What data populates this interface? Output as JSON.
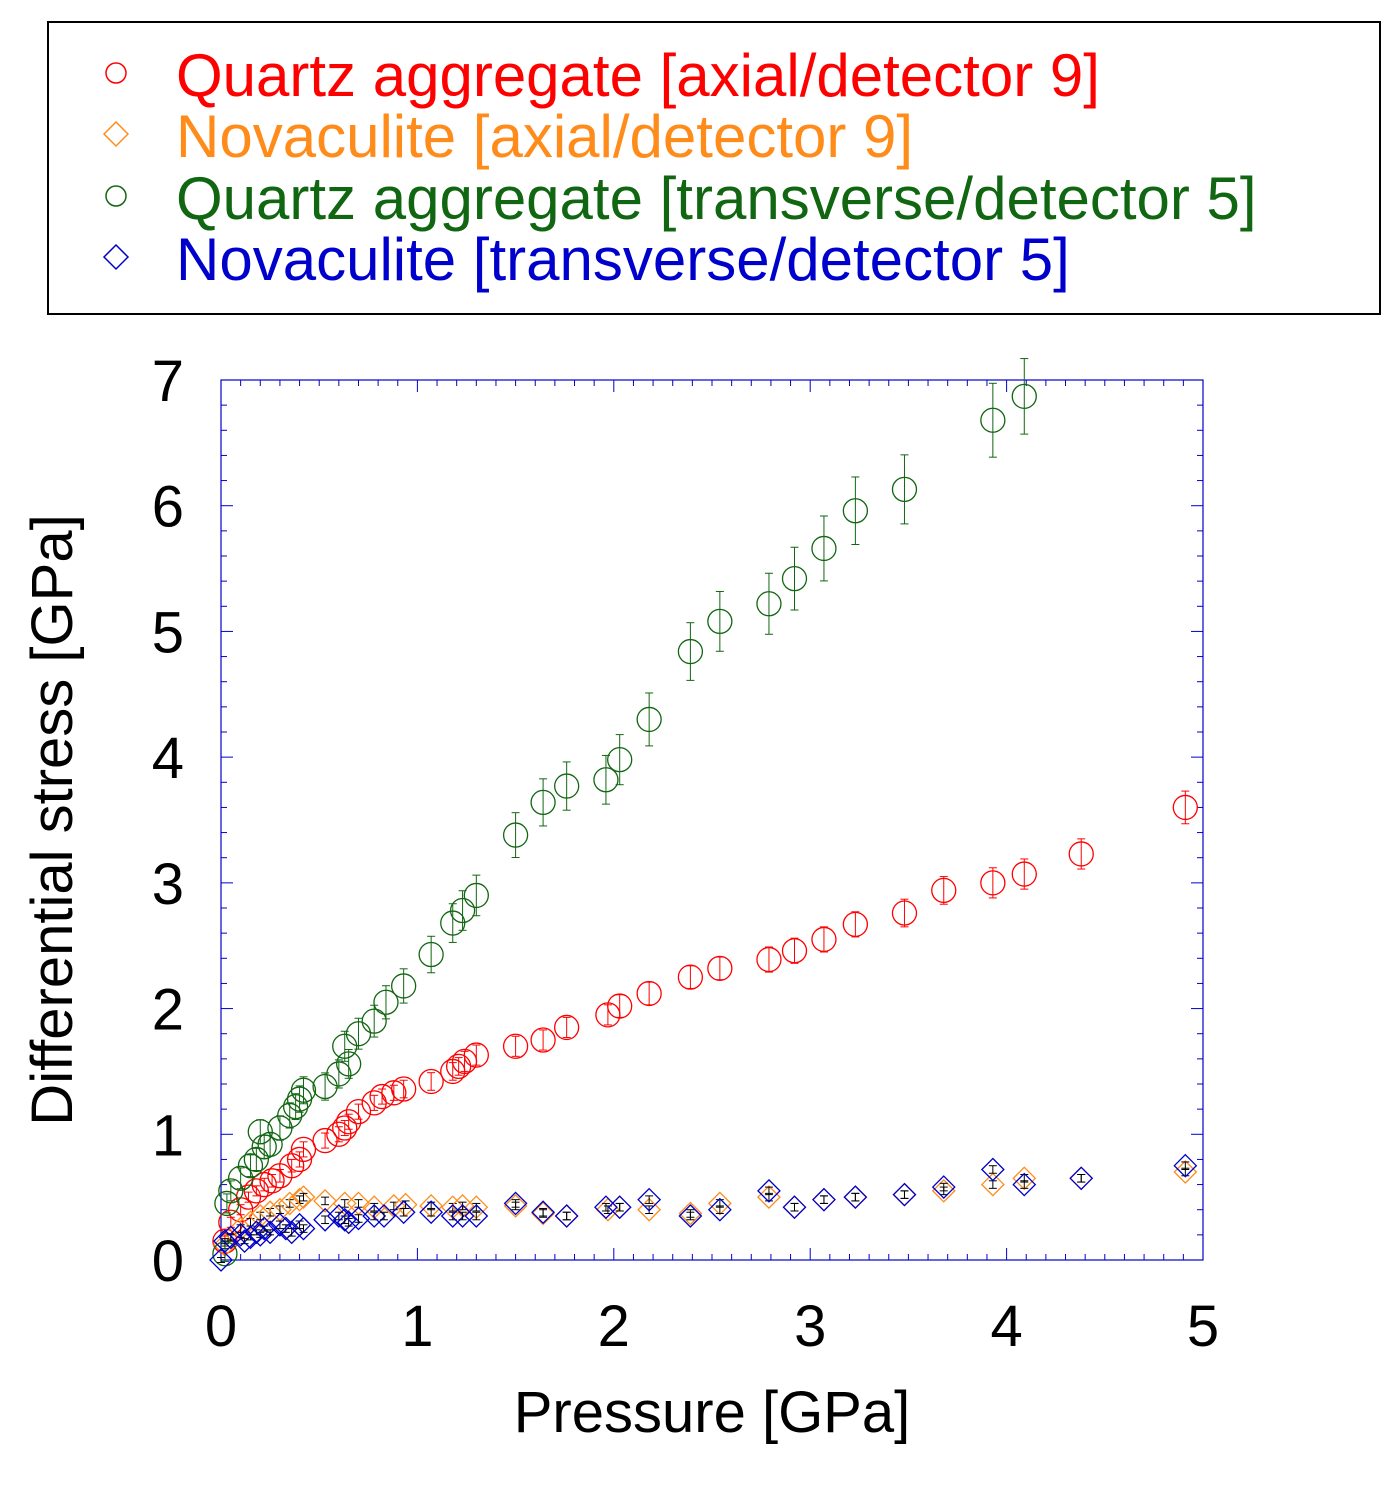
{
  "chart_data": {
    "type": "scatter",
    "title": "",
    "xlabel": "Pressure [GPa]",
    "ylabel": "Differential stress [GPa]",
    "xlim": [
      0,
      5
    ],
    "ylim": [
      0,
      7
    ],
    "xticks": [
      "0",
      "1",
      "2",
      "3",
      "4",
      "5"
    ],
    "yticks": [
      "0",
      "1",
      "2",
      "3",
      "4",
      "5",
      "6",
      "7"
    ],
    "legend_position": "top, above plot",
    "series": [
      {
        "name": "Quartz aggregate [axial/detector 9]",
        "marker": "circle",
        "color": "#ff0000",
        "x": [
          0.02,
          0.05,
          0.1,
          0.14,
          0.18,
          0.22,
          0.26,
          0.3,
          0.36,
          0.4,
          0.42,
          0.53,
          0.6,
          0.63,
          0.65,
          0.7,
          0.78,
          0.82,
          0.88,
          0.93,
          1.07,
          1.18,
          1.21,
          1.24,
          1.3,
          1.5,
          1.64,
          1.76,
          1.97,
          2.03,
          2.18,
          2.39,
          2.54,
          2.79,
          2.92,
          3.07,
          3.23,
          3.48,
          3.68,
          3.93,
          4.09,
          4.38,
          4.91
        ],
        "y": [
          0.15,
          0.3,
          0.4,
          0.5,
          0.55,
          0.6,
          0.63,
          0.67,
          0.75,
          0.8,
          0.88,
          0.95,
          1.0,
          1.05,
          1.1,
          1.18,
          1.25,
          1.3,
          1.33,
          1.36,
          1.42,
          1.5,
          1.54,
          1.58,
          1.63,
          1.7,
          1.75,
          1.85,
          1.95,
          2.02,
          2.12,
          2.25,
          2.32,
          2.39,
          2.46,
          2.55,
          2.67,
          2.76,
          2.94,
          3.0,
          3.07,
          3.23,
          3.6
        ],
        "err": [
          0.04,
          0.04,
          0.04,
          0.04,
          0.04,
          0.05,
          0.05,
          0.05,
          0.05,
          0.06,
          0.06,
          0.06,
          0.06,
          0.06,
          0.06,
          0.06,
          0.06,
          0.06,
          0.06,
          0.07,
          0.07,
          0.07,
          0.07,
          0.08,
          0.08,
          0.08,
          0.08,
          0.08,
          0.08,
          0.09,
          0.09,
          0.09,
          0.09,
          0.1,
          0.1,
          0.1,
          0.1,
          0.11,
          0.11,
          0.12,
          0.12,
          0.12,
          0.13
        ]
      },
      {
        "name": "Novaculite [axial/detector 9]",
        "marker": "diamond",
        "color": "#ff8c1a",
        "x": [
          0.02,
          0.05,
          0.1,
          0.15,
          0.2,
          0.25,
          0.3,
          0.35,
          0.4,
          0.42,
          0.53,
          0.63,
          0.7,
          0.78,
          0.88,
          0.94,
          1.07,
          1.18,
          1.23,
          1.3,
          1.5,
          1.64,
          1.76,
          1.97,
          2.03,
          2.18,
          2.39,
          2.54,
          2.79,
          2.92,
          3.07,
          3.23,
          3.48,
          3.68,
          3.93,
          4.09,
          4.38,
          4.91
        ],
        "y": [
          0.12,
          0.18,
          0.25,
          0.3,
          0.35,
          0.38,
          0.4,
          0.45,
          0.48,
          0.5,
          0.47,
          0.45,
          0.45,
          0.42,
          0.43,
          0.44,
          0.43,
          0.42,
          0.43,
          0.42,
          0.43,
          0.37,
          0.35,
          0.4,
          0.42,
          0.4,
          0.37,
          0.45,
          0.5,
          0.42,
          0.48,
          0.5,
          0.52,
          0.55,
          0.6,
          0.65,
          0.65,
          0.7
        ],
        "err": [
          0.03,
          0.03,
          0.03,
          0.03,
          0.03,
          0.03,
          0.03,
          0.03,
          0.03,
          0.03,
          0.03,
          0.03,
          0.03,
          0.03,
          0.03,
          0.03,
          0.03,
          0.03,
          0.03,
          0.03,
          0.03,
          0.03,
          0.03,
          0.03,
          0.03,
          0.03,
          0.03,
          0.03,
          0.03,
          0.03,
          0.03,
          0.03,
          0.03,
          0.03,
          0.03,
          0.03,
          0.03,
          0.03
        ]
      },
      {
        "name": "Quartz aggregate [transverse/detector 5]",
        "marker": "circle",
        "color": "#116611",
        "x": [
          0.02,
          0.03,
          0.05,
          0.1,
          0.15,
          0.18,
          0.2,
          0.22,
          0.25,
          0.3,
          0.35,
          0.38,
          0.4,
          0.42,
          0.53,
          0.6,
          0.63,
          0.65,
          0.7,
          0.78,
          0.84,
          0.93,
          1.07,
          1.18,
          1.23,
          1.3,
          1.5,
          1.64,
          1.76,
          1.96,
          2.03,
          2.18,
          2.39,
          2.54,
          2.79,
          2.92,
          3.07,
          3.23,
          3.48,
          3.93,
          4.09
        ],
        "y": [
          0.05,
          0.45,
          0.55,
          0.65,
          0.75,
          0.8,
          1.02,
          0.9,
          0.92,
          1.05,
          1.15,
          1.22,
          1.28,
          1.35,
          1.38,
          1.48,
          1.7,
          1.56,
          1.8,
          1.9,
          2.05,
          2.18,
          2.43,
          2.68,
          2.78,
          2.9,
          3.38,
          3.64,
          3.77,
          3.82,
          3.98,
          4.3,
          4.84,
          5.08,
          5.22,
          5.42,
          5.66,
          5.96,
          6.13,
          6.68,
          6.87
        ]
      },
      {
        "name": "Novaculite [transverse/detector 5]",
        "marker": "diamond",
        "color": "#0000cc",
        "x": [
          0.0,
          0.02,
          0.05,
          0.1,
          0.12,
          0.15,
          0.18,
          0.2,
          0.22,
          0.25,
          0.3,
          0.33,
          0.36,
          0.4,
          0.42,
          0.53,
          0.6,
          0.63,
          0.65,
          0.7,
          0.78,
          0.83,
          0.93,
          1.07,
          1.18,
          1.23,
          1.3,
          1.5,
          1.64,
          1.76,
          1.96,
          2.03,
          2.18,
          2.39,
          2.54,
          2.79,
          2.92,
          3.07,
          3.23,
          3.48,
          3.68,
          3.93,
          4.09,
          4.38,
          4.91
        ],
        "y": [
          0.0,
          0.15,
          0.18,
          0.2,
          0.15,
          0.18,
          0.22,
          0.2,
          0.25,
          0.22,
          0.28,
          0.25,
          0.22,
          0.28,
          0.25,
          0.32,
          0.35,
          0.32,
          0.3,
          0.33,
          0.35,
          0.35,
          0.38,
          0.38,
          0.35,
          0.35,
          0.35,
          0.45,
          0.38,
          0.35,
          0.42,
          0.42,
          0.48,
          0.35,
          0.4,
          0.55,
          0.42,
          0.48,
          0.5,
          0.52,
          0.58,
          0.72,
          0.6,
          0.65,
          0.75
        ],
        "err": [
          0.02,
          0.02,
          0.02,
          0.02,
          0.02,
          0.02,
          0.02,
          0.02,
          0.02,
          0.02,
          0.03,
          0.03,
          0.03,
          0.03,
          0.03,
          0.03,
          0.03,
          0.03,
          0.03,
          0.03,
          0.03,
          0.03,
          0.03,
          0.03,
          0.03,
          0.03,
          0.03,
          0.03,
          0.03,
          0.03,
          0.03,
          0.03,
          0.03,
          0.03,
          0.03,
          0.03,
          0.03,
          0.03,
          0.03,
          0.03,
          0.03,
          0.03,
          0.03,
          0.03,
          0.03
        ]
      }
    ]
  },
  "colors": {
    "axes": "#0000cc",
    "text": "#000000"
  }
}
